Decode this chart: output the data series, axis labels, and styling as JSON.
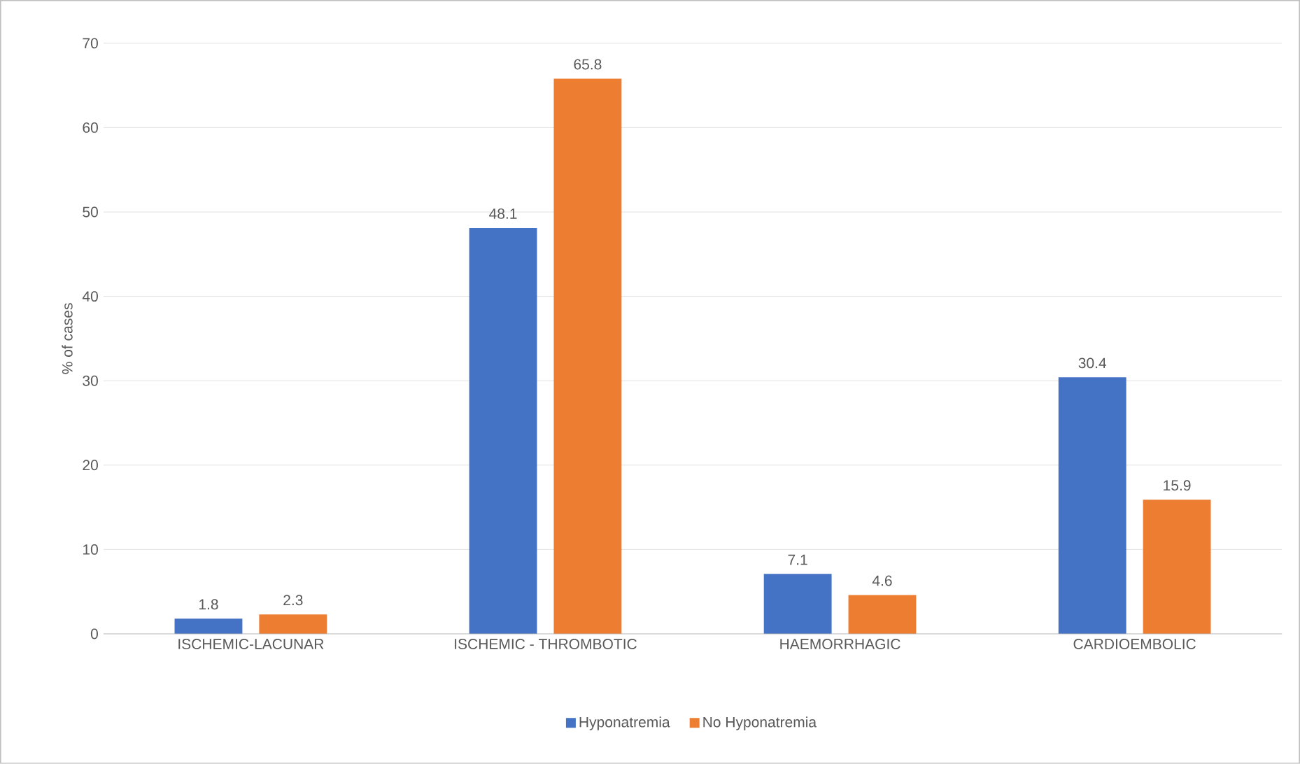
{
  "chart_data": {
    "type": "bar",
    "ylabel": "% of cases",
    "categories": [
      "ISCHEMIC-LACUNAR",
      "ISCHEMIC - THROMBOTIC",
      "HAEMORRHAGIC",
      "CARDIOEMBOLIC"
    ],
    "series": [
      {
        "name": "Hyponatremia",
        "color": "#4472c4",
        "values": [
          1.8,
          48.1,
          7.1,
          30.4
        ]
      },
      {
        "name": "No Hyponatremia",
        "color": "#ed7d31",
        "values": [
          2.3,
          65.8,
          4.6,
          15.9
        ]
      }
    ],
    "ylim": [
      0,
      70
    ],
    "yticks": [
      0,
      10,
      20,
      30,
      40,
      50,
      60,
      70
    ],
    "grid": "y",
    "legend": "bottom",
    "data_labels": true
  }
}
